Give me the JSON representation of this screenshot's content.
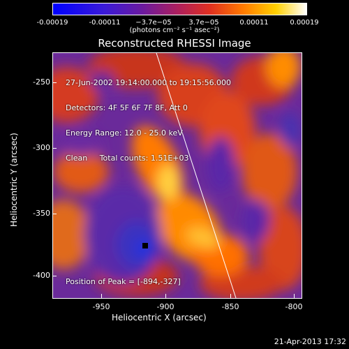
{
  "colorbar": {
    "ticks": [
      "-0.00019",
      "-0.00011",
      "−3.7e−05",
      "3.7e−05",
      "0.00011",
      "0.00019"
    ],
    "units": "(photons cm⁻² s⁻¹ asec⁻²)"
  },
  "title": "Reconstructed RHESSI Image",
  "info": {
    "time": "27-Jun-2002 19:14:00.000 to 19:15:56.000",
    "detectors": "Detectors: 4F 5F 6F 7F 8F, Att 0",
    "energy": "Energy Range: 12.0 - 25.0 keV",
    "clean": "Clean     Total counts: 1.51E+03",
    "peak": "Position of Peak = [-894,-327]"
  },
  "axes": {
    "ylabel": "Heliocentric Y (arcsec)",
    "xlabel": "Heliocentric X (arcsec)",
    "yticks": [
      "-250",
      "-300",
      "-350",
      "-400"
    ],
    "xticks": [
      "-950",
      "-900",
      "-850",
      "-800"
    ]
  },
  "footer": {
    "date": "21-Apr-2013 17:32"
  },
  "colors": {
    "background": "#000000",
    "text": "#ffffff"
  }
}
